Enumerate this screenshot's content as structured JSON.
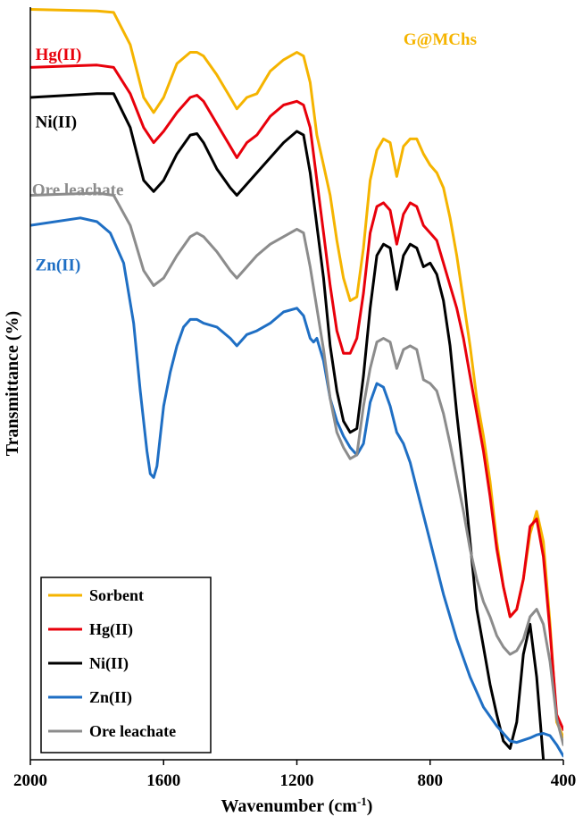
{
  "chart_data": {
    "type": "line",
    "title": "",
    "xlabel": "Wavenumber (cm⁻¹)",
    "xlabel_parts": {
      "text": "Wavenumber (cm",
      "sup": "-1",
      "close": ")"
    },
    "ylabel": "Transmittance (%)",
    "xlim": [
      2000,
      400
    ],
    "x_reversed": true,
    "ylim": [
      0,
      100
    ],
    "y_ticks_shown": false,
    "x_ticks": [
      2000,
      1600,
      1200,
      800,
      400
    ],
    "x_tick_labels": [
      "2000",
      "1600",
      "1200",
      "800",
      "400"
    ],
    "annotations": [
      {
        "name": "annotation-g-mchs",
        "text": "G@MChs",
        "color": "#F5B400",
        "x": 880,
        "y": 95
      },
      {
        "name": "annotation-hg",
        "text": "Hg(II)",
        "color": "#E8000B",
        "x": 1985,
        "y": 93
      },
      {
        "name": "annotation-ni",
        "text": "Ni(II)",
        "color": "#000000",
        "x": 1985,
        "y": 84
      },
      {
        "name": "annotation-ore",
        "text": "Ore leachate",
        "color": "#8C8C8C",
        "x": 1995,
        "y": 75
      },
      {
        "name": "annotation-zn",
        "text": "Zn(II)",
        "color": "#1F6FC4",
        "x": 1985,
        "y": 65
      }
    ],
    "legend": {
      "placement": "bottom-left",
      "entries": [
        {
          "label": "Sorbent",
          "color": "#F5B400"
        },
        {
          "label": "Hg(II)",
          "color": "#E8000B"
        },
        {
          "label": "Ni(II)",
          "color": "#000000"
        },
        {
          "label": "Zn(II)",
          "color": "#1F6FC4"
        },
        {
          "label": "Ore leachate",
          "color": "#8C8C8C"
        }
      ]
    },
    "series": [
      {
        "name": "Sorbent",
        "color": "#F5B400",
        "x": [
          2000,
          1800,
          1750,
          1700,
          1660,
          1630,
          1600,
          1560,
          1520,
          1500,
          1480,
          1440,
          1400,
          1380,
          1350,
          1320,
          1280,
          1240,
          1200,
          1180,
          1160,
          1140,
          1120,
          1100,
          1080,
          1060,
          1040,
          1020,
          1000,
          980,
          960,
          940,
          920,
          900,
          880,
          860,
          840,
          820,
          800,
          780,
          760,
          740,
          720,
          700,
          680,
          660,
          640,
          620,
          600,
          580,
          560,
          540,
          520,
          500,
          480,
          460,
          440,
          420,
          400
        ],
        "y": [
          99.7,
          99.5,
          99.3,
          95,
          88,
          86,
          88,
          92.5,
          94,
          94,
          93.5,
          91,
          88,
          86.5,
          88,
          88.5,
          91.5,
          93,
          94,
          93.5,
          90,
          83,
          79,
          75,
          69,
          64,
          61,
          61.5,
          68,
          77,
          81,
          82.5,
          82,
          77.5,
          81.5,
          82.5,
          82.5,
          80.5,
          79,
          78,
          76,
          72,
          67,
          61,
          55,
          48,
          43,
          37,
          29,
          23,
          19,
          20,
          24,
          30,
          33,
          29,
          18,
          5,
          3
        ]
      },
      {
        "name": "Hg(II)",
        "color": "#E8000B",
        "x": [
          2000,
          1800,
          1750,
          1700,
          1660,
          1630,
          1600,
          1560,
          1520,
          1500,
          1480,
          1440,
          1400,
          1380,
          1350,
          1320,
          1280,
          1240,
          1200,
          1180,
          1160,
          1140,
          1120,
          1100,
          1080,
          1060,
          1040,
          1020,
          1000,
          980,
          960,
          940,
          920,
          900,
          880,
          860,
          840,
          820,
          800,
          780,
          760,
          740,
          720,
          700,
          680,
          660,
          640,
          620,
          600,
          580,
          560,
          540,
          520,
          500,
          480,
          460,
          440,
          420,
          400
        ],
        "y": [
          92,
          92.3,
          92,
          88.5,
          84,
          82,
          83.5,
          86,
          88,
          88.3,
          87.5,
          84.5,
          81.5,
          80,
          82,
          83,
          85.5,
          87,
          87.5,
          87,
          84,
          77,
          70,
          63,
          57,
          54,
          54,
          56,
          62,
          70,
          73.5,
          74,
          73,
          68.5,
          72.5,
          74,
          73.5,
          71,
          70,
          69,
          66,
          63,
          60,
          56,
          51,
          46,
          41,
          35,
          28,
          23,
          19,
          20,
          24,
          31,
          32,
          27,
          17,
          6,
          4
        ]
      },
      {
        "name": "Ni(II)",
        "color": "#000000",
        "x": [
          2000,
          1800,
          1750,
          1700,
          1660,
          1630,
          1600,
          1560,
          1520,
          1500,
          1480,
          1440,
          1400,
          1380,
          1350,
          1320,
          1280,
          1240,
          1200,
          1180,
          1160,
          1140,
          1120,
          1100,
          1080,
          1060,
          1040,
          1020,
          1000,
          980,
          960,
          940,
          920,
          900,
          880,
          860,
          840,
          820,
          800,
          780,
          760,
          740,
          720,
          700,
          680,
          660,
          640,
          620,
          600,
          580,
          560,
          540,
          520,
          500,
          480,
          460
        ],
        "y": [
          88,
          88.5,
          88.5,
          84,
          77,
          75.5,
          77,
          80.5,
          83,
          83.2,
          82,
          78.5,
          76,
          75,
          76.5,
          78,
          80,
          82,
          83.5,
          83,
          78,
          71,
          64,
          55,
          49,
          45,
          43.5,
          44,
          51,
          60,
          67,
          68.5,
          68,
          62.5,
          67,
          68.5,
          68,
          65.5,
          66,
          64.5,
          61,
          55,
          46,
          38,
          29,
          20,
          15,
          10,
          6,
          2.5,
          1.5,
          5,
          14,
          18,
          11,
          0
        ]
      },
      {
        "name": "Zn(II)",
        "color": "#1F6FC4",
        "x": [
          2000,
          1850,
          1800,
          1760,
          1720,
          1690,
          1670,
          1650,
          1640,
          1630,
          1620,
          1610,
          1600,
          1580,
          1560,
          1540,
          1520,
          1500,
          1480,
          1440,
          1400,
          1380,
          1350,
          1320,
          1280,
          1240,
          1200,
          1180,
          1160,
          1150,
          1140,
          1120,
          1100,
          1080,
          1060,
          1040,
          1020,
          1000,
          980,
          960,
          940,
          920,
          900,
          880,
          860,
          840,
          820,
          800,
          760,
          720,
          680,
          640,
          600,
          580,
          560,
          540,
          520,
          500,
          480,
          460,
          440,
          420,
          400
        ],
        "y": [
          71,
          72,
          71.5,
          70,
          66,
          58,
          49,
          41,
          38,
          37.5,
          39,
          43,
          47,
          51.5,
          55,
          57.5,
          58.5,
          58.5,
          58,
          57.5,
          56,
          55,
          56.5,
          57,
          58,
          59.5,
          60,
          59,
          56,
          55.5,
          56,
          53,
          48,
          45,
          43,
          41.5,
          40.5,
          42,
          47.5,
          50,
          49.5,
          47,
          43.5,
          42,
          39.5,
          36,
          32.5,
          29,
          22,
          16,
          11,
          7,
          4.5,
          3.5,
          2.5,
          2.3,
          2.6,
          2.9,
          3.3,
          3.5,
          3.2,
          2,
          0.5
        ]
      },
      {
        "name": "Ore leachate",
        "color": "#8C8C8C",
        "x": [
          2000,
          1800,
          1750,
          1700,
          1660,
          1630,
          1600,
          1560,
          1520,
          1500,
          1480,
          1440,
          1400,
          1380,
          1350,
          1320,
          1280,
          1240,
          1200,
          1180,
          1160,
          1140,
          1120,
          1100,
          1080,
          1060,
          1040,
          1020,
          1000,
          980,
          960,
          940,
          920,
          900,
          880,
          860,
          840,
          820,
          800,
          780,
          760,
          740,
          720,
          700,
          680,
          660,
          640,
          620,
          600,
          580,
          560,
          540,
          520,
          500,
          480,
          460,
          440,
          420,
          400
        ],
        "y": [
          75,
          75.3,
          75,
          71,
          65,
          63,
          64,
          67,
          69.5,
          70,
          69.5,
          67.5,
          65,
          64,
          65.5,
          67,
          68.5,
          69.5,
          70.5,
          70,
          65.5,
          60,
          54.5,
          48,
          43.5,
          41.5,
          40,
          40.5,
          47,
          52,
          55.5,
          56,
          55.5,
          52,
          54.5,
          55,
          54.5,
          50.5,
          50,
          49,
          46,
          42,
          37.5,
          33,
          28,
          24,
          21,
          19,
          16.5,
          15,
          14,
          14.5,
          16,
          19,
          20,
          18,
          13,
          5.5,
          2
        ]
      }
    ]
  }
}
